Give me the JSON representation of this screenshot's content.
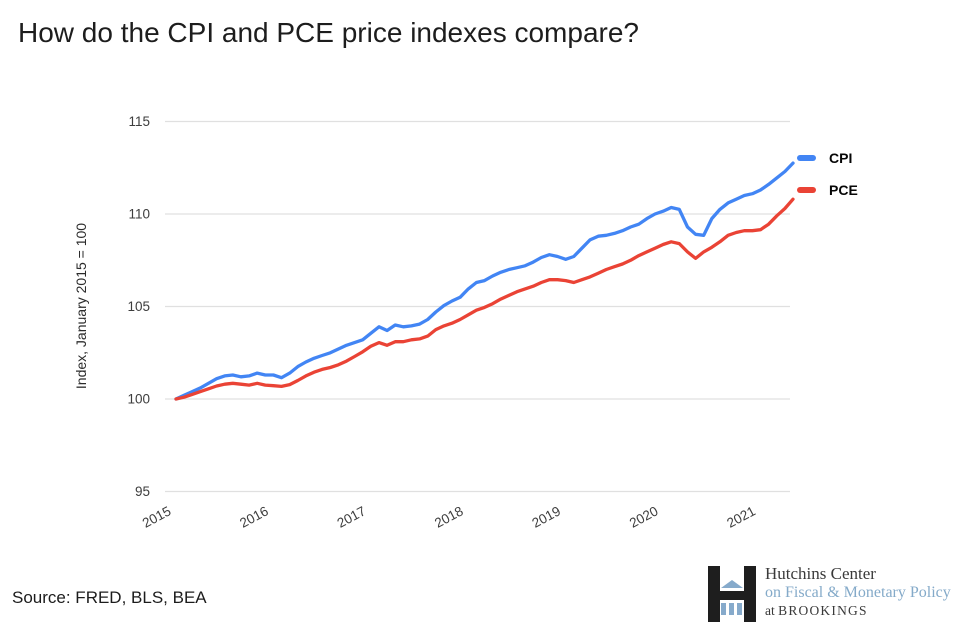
{
  "title": "How do the CPI and PCE price indexes compare?",
  "source": "Source: FRED, BLS, BEA",
  "legend": [
    {
      "label": "CPI",
      "color": "#4285f4"
    },
    {
      "label": "PCE",
      "color": "#ea4335"
    }
  ],
  "logo": {
    "line1": "Hutchins Center",
    "line2": "on Fiscal & Monetary Policy",
    "line3_prefix": "at ",
    "line3_name": "BROOKINGS"
  },
  "chart_data": {
    "type": "line",
    "title": "How do the CPI and PCE price indexes compare?",
    "xlabel": "",
    "ylabel": "Index, January 2015 = 100",
    "ylim": [
      95,
      115
    ],
    "yticks": [
      95,
      100,
      105,
      110,
      115
    ],
    "xticks": [
      2015,
      2016,
      2017,
      2018,
      2019,
      2020,
      2021
    ],
    "x_start": "2015-01",
    "x_end": "2021-05",
    "frequency": "monthly",
    "grid": "horizontal",
    "legend_position": "right",
    "grid_color": "#e0e0e0",
    "tick_color": "#3d3d3d",
    "series": [
      {
        "name": "CPI",
        "color": "#4285f4",
        "values": [
          100.0,
          100.2,
          100.4,
          100.6,
          100.85,
          101.1,
          101.25,
          101.3,
          101.2,
          101.25,
          101.4,
          101.3,
          101.3,
          101.15,
          101.4,
          101.75,
          102.0,
          102.2,
          102.35,
          102.5,
          102.7,
          102.9,
          103.05,
          103.2,
          103.55,
          103.9,
          103.7,
          104.0,
          103.9,
          103.95,
          104.05,
          104.3,
          104.7,
          105.05,
          105.3,
          105.5,
          105.95,
          106.3,
          106.4,
          106.65,
          106.85,
          107.0,
          107.1,
          107.2,
          107.4,
          107.65,
          107.8,
          107.7,
          107.55,
          107.7,
          108.15,
          108.6,
          108.8,
          108.85,
          108.95,
          109.1,
          109.3,
          109.45,
          109.75,
          110.0,
          110.15,
          110.35,
          110.25,
          109.3,
          108.9,
          108.85,
          109.75,
          110.25,
          110.6,
          110.8,
          111.0,
          111.1,
          111.3,
          111.6,
          111.95,
          112.3,
          112.75
        ]
      },
      {
        "name": "PCE",
        "color": "#ea4335",
        "values": [
          100.0,
          100.1,
          100.25,
          100.4,
          100.55,
          100.7,
          100.8,
          100.85,
          100.8,
          100.75,
          100.85,
          100.75,
          100.72,
          100.68,
          100.78,
          101.0,
          101.25,
          101.45,
          101.6,
          101.7,
          101.85,
          102.05,
          102.3,
          102.55,
          102.85,
          103.05,
          102.9,
          103.1,
          103.1,
          103.2,
          103.25,
          103.4,
          103.75,
          103.95,
          104.1,
          104.3,
          104.55,
          104.8,
          104.95,
          105.15,
          105.4,
          105.6,
          105.8,
          105.95,
          106.1,
          106.3,
          106.45,
          106.45,
          106.4,
          106.3,
          106.45,
          106.6,
          106.8,
          107.0,
          107.15,
          107.3,
          107.5,
          107.75,
          107.95,
          108.15,
          108.35,
          108.5,
          108.4,
          107.95,
          107.6,
          107.95,
          108.2,
          108.5,
          108.85,
          109.0,
          109.1,
          109.1,
          109.15,
          109.45,
          109.9,
          110.3,
          110.8
        ]
      }
    ]
  }
}
